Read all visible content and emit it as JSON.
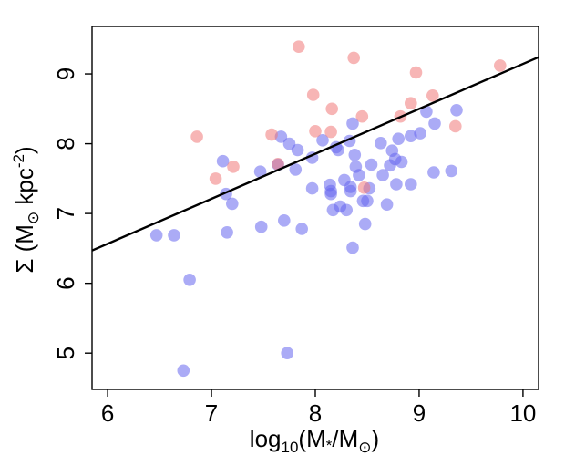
{
  "chart_data": {
    "type": "scatter",
    "title": "",
    "xlabel": {
      "base": "log",
      "sub": "10",
      "body": "(M",
      "star": "*",
      "slash": "/M",
      "sun": "⊙",
      "close": ")"
    },
    "ylabel": {
      "sym": "Σ",
      "open": " (M",
      "sun": "⊙",
      "unit": " kpc",
      "sup": "-2",
      "close": ")"
    },
    "xlim": [
      5.85,
      10.15
    ],
    "ylim": [
      4.48,
      9.68
    ],
    "xticks": [
      6,
      7,
      8,
      9,
      10
    ],
    "yticks": [
      5,
      6,
      7,
      8,
      9
    ],
    "xtick_labels": [
      "6",
      "7",
      "8",
      "9",
      "10"
    ],
    "ytick_labels": [
      "5",
      "6",
      "7",
      "8",
      "9"
    ],
    "fit_line": {
      "x": [
        5.85,
        10.15
      ],
      "y": [
        6.47,
        9.24
      ],
      "color": "#000000"
    },
    "series": [
      {
        "name": "blue",
        "color": "#6666ee",
        "points": [
          [
            6.47,
            6.69
          ],
          [
            6.64,
            6.69
          ],
          [
            6.79,
            6.05
          ],
          [
            6.73,
            4.75
          ],
          [
            7.11,
            7.75
          ],
          [
            7.14,
            7.28
          ],
          [
            7.15,
            6.73
          ],
          [
            7.2,
            7.14
          ],
          [
            7.47,
            7.6
          ],
          [
            7.48,
            6.81
          ],
          [
            7.64,
            7.7
          ],
          [
            7.67,
            8.1
          ],
          [
            7.7,
            6.9
          ],
          [
            7.73,
            5.0
          ],
          [
            7.75,
            8.0
          ],
          [
            7.81,
            7.63
          ],
          [
            7.83,
            7.91
          ],
          [
            7.87,
            6.78
          ],
          [
            7.97,
            7.8
          ],
          [
            7.97,
            7.36
          ],
          [
            8.07,
            8.05
          ],
          [
            8.14,
            7.41
          ],
          [
            8.15,
            7.32
          ],
          [
            8.15,
            7.28
          ],
          [
            8.17,
            7.05
          ],
          [
            8.2,
            7.95
          ],
          [
            8.22,
            7.91
          ],
          [
            8.24,
            7.1
          ],
          [
            8.28,
            7.48
          ],
          [
            8.3,
            7.05
          ],
          [
            8.33,
            8.04
          ],
          [
            8.34,
            7.38
          ],
          [
            8.34,
            7.32
          ],
          [
            8.36,
            8.29
          ],
          [
            8.36,
            6.51
          ],
          [
            8.38,
            7.84
          ],
          [
            8.39,
            7.67
          ],
          [
            8.42,
            7.55
          ],
          [
            8.46,
            7.18
          ],
          [
            8.48,
            6.85
          ],
          [
            8.5,
            7.18
          ],
          [
            8.52,
            7.36
          ],
          [
            8.54,
            7.7
          ],
          [
            8.63,
            8.01
          ],
          [
            8.65,
            7.55
          ],
          [
            8.69,
            7.13
          ],
          [
            8.72,
            7.69
          ],
          [
            8.74,
            7.9
          ],
          [
            8.77,
            7.78
          ],
          [
            8.78,
            7.42
          ],
          [
            8.8,
            8.07
          ],
          [
            8.83,
            7.74
          ],
          [
            8.92,
            7.42
          ],
          [
            8.92,
            8.11
          ],
          [
            9.01,
            8.15
          ],
          [
            9.07,
            8.46
          ],
          [
            9.14,
            7.59
          ],
          [
            9.15,
            8.29
          ],
          [
            9.31,
            7.61
          ],
          [
            9.36,
            8.48
          ]
        ]
      },
      {
        "name": "red",
        "color": "#f07878",
        "points": [
          [
            6.86,
            8.1
          ],
          [
            7.04,
            7.5
          ],
          [
            7.21,
            7.67
          ],
          [
            7.58,
            8.13
          ],
          [
            7.64,
            7.71
          ],
          [
            7.84,
            9.39
          ],
          [
            7.98,
            8.7
          ],
          [
            8.0,
            8.18
          ],
          [
            8.15,
            8.17
          ],
          [
            8.16,
            8.5
          ],
          [
            8.37,
            9.23
          ],
          [
            8.45,
            8.39
          ],
          [
            8.47,
            7.37
          ],
          [
            8.82,
            8.39
          ],
          [
            8.92,
            8.58
          ],
          [
            8.97,
            9.02
          ],
          [
            9.13,
            8.69
          ],
          [
            9.35,
            8.25
          ],
          [
            9.78,
            9.12
          ]
        ]
      }
    ]
  }
}
